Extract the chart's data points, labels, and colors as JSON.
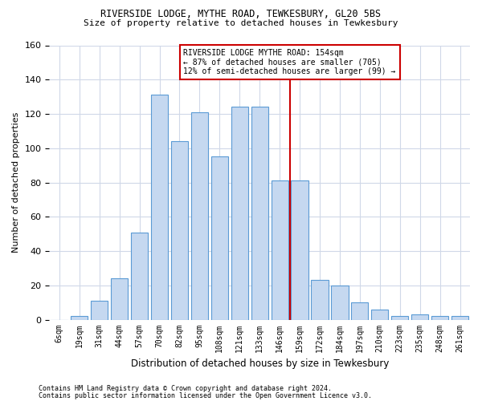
{
  "title1": "RIVERSIDE LODGE, MYTHE ROAD, TEWKESBURY, GL20 5BS",
  "title2": "Size of property relative to detached houses in Tewkesbury",
  "xlabel": "Distribution of detached houses by size in Tewkesbury",
  "ylabel": "Number of detached properties",
  "footnote1": "Contains HM Land Registry data © Crown copyright and database right 2024.",
  "footnote2": "Contains public sector information licensed under the Open Government Licence v3.0.",
  "categories": [
    "6sqm",
    "19sqm",
    "31sqm",
    "44sqm",
    "57sqm",
    "70sqm",
    "82sqm",
    "95sqm",
    "108sqm",
    "121sqm",
    "133sqm",
    "146sqm",
    "159sqm",
    "172sqm",
    "184sqm",
    "197sqm",
    "210sqm",
    "223sqm",
    "235sqm",
    "248sqm",
    "261sqm"
  ],
  "values": [
    0,
    2,
    11,
    24,
    51,
    131,
    104,
    121,
    95,
    124,
    124,
    81,
    81,
    23,
    20,
    10,
    6,
    2,
    3,
    2,
    2
  ],
  "bar_color": "#c5d8f0",
  "bar_edge_color": "#5b9bd5",
  "ref_line_label": "RIVERSIDE LODGE MYTHE ROAD: 154sqm",
  "ref_line_detail1": "← 87% of detached houses are smaller (705)",
  "ref_line_detail2": "12% of semi-detached houses are larger (99) →",
  "annotation_box_color": "#cc0000",
  "vline_color": "#cc0000",
  "bg_color": "#ffffff",
  "grid_color": "#d0d8e8",
  "ylim": [
    0,
    160
  ],
  "yticks": [
    0,
    20,
    40,
    60,
    80,
    100,
    120,
    140,
    160
  ]
}
